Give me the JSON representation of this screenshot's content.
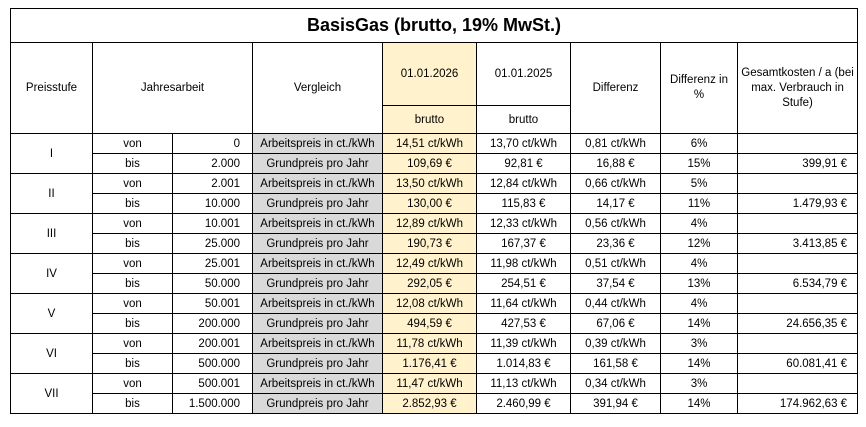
{
  "header": {
    "title": "BasisGas (brutto, 19% MwSt.)",
    "columns": {
      "stufe": "Preisstufe",
      "jahresarbeit": "Jahresarbeit",
      "vergleich": "Vergleich",
      "date_new": "01.01.2026",
      "sub_new": "brutto",
      "date_old": "01.01.2025",
      "sub_old": "brutto",
      "diff": "Differenz",
      "diff_pct": "Differenz in %",
      "total": "Gesamtkosten / a (bei max. Verbrauch in Stufe)"
    }
  },
  "table": {
    "rows": [
      {
        "stufe": "I",
        "lines": [
          [
            "von",
            "0",
            "Arbeitspreis in ct./kWh",
            "14,51 ct/kWh",
            "13,70 ct/kWh",
            "0,81 ct/kWh",
            "6%"
          ],
          [
            "bis",
            "2.000",
            "Grundpreis pro Jahr",
            "109,69 €",
            "92,81 €",
            "16,88 €",
            "15%",
            "399,91 €"
          ]
        ]
      },
      {
        "stufe": "II",
        "lines": [
          [
            "von",
            "2.001",
            "Arbeitspreis in ct./kWh",
            "13,50 ct/kWh",
            "12,84 ct/kWh",
            "0,66 ct/kWh",
            "5%"
          ],
          [
            "bis",
            "10.000",
            "Grundpreis pro Jahr",
            "130,00 €",
            "115,83 €",
            "14,17 €",
            "11%",
            "1.479,93 €"
          ]
        ]
      },
      {
        "stufe": "III",
        "lines": [
          [
            "von",
            "10.001",
            "Arbeitspreis in ct./kWh",
            "12,89 ct/kWh",
            "12,33 ct/kWh",
            "0,56 ct/kWh",
            "4%"
          ],
          [
            "bis",
            "25.000",
            "Grundpreis pro Jahr",
            "190,73 €",
            "167,37 €",
            "23,36 €",
            "12%",
            "3.413,85 €"
          ]
        ]
      },
      {
        "stufe": "IV",
        "lines": [
          [
            "von",
            "25.001",
            "Arbeitspreis in ct./kWh",
            "12,49 ct/kWh",
            "11,98 ct/kWh",
            "0,51 ct/kWh",
            "4%"
          ],
          [
            "bis",
            "50.000",
            "Grundpreis pro Jahr",
            "292,05 €",
            "254,51 €",
            "37,54 €",
            "13%",
            "6.534,79 €"
          ]
        ]
      },
      {
        "stufe": "V",
        "lines": [
          [
            "von",
            "50.001",
            "Arbeitspreis in ct./kWh",
            "12,08 ct/kWh",
            "11,64 ct/kWh",
            "0,44 ct/kWh",
            "4%"
          ],
          [
            "bis",
            "200.000",
            "Grundpreis pro Jahr",
            "494,59 €",
            "427,53 €",
            "67,06 €",
            "14%",
            "24.656,35 €"
          ]
        ]
      },
      {
        "stufe": "VI",
        "lines": [
          [
            "von",
            "200.001",
            "Arbeitspreis in ct./kWh",
            "11,78 ct/kWh",
            "11,39 ct/kWh",
            "0,39 ct/kWh",
            "3%"
          ],
          [
            "bis",
            "500.000",
            "Grundpreis pro Jahr",
            "1.176,41 €",
            "1.014,83 €",
            "161,58 €",
            "14%",
            "60.081,41 €"
          ]
        ]
      },
      {
        "stufe": "VII",
        "lines": [
          [
            "von",
            "500.001",
            "Arbeitspreis in ct./kWh",
            "11,47 ct/kWh",
            "11,13 ct/kWh",
            "0,34 ct/kWh",
            "3%"
          ],
          [
            "bis",
            "1.500.000",
            "Grundpreis pro Jahr",
            "2.852,93 €",
            "2.460,99 €",
            "391,94 €",
            "14%",
            "174.962,63 €"
          ]
        ]
      }
    ]
  }
}
